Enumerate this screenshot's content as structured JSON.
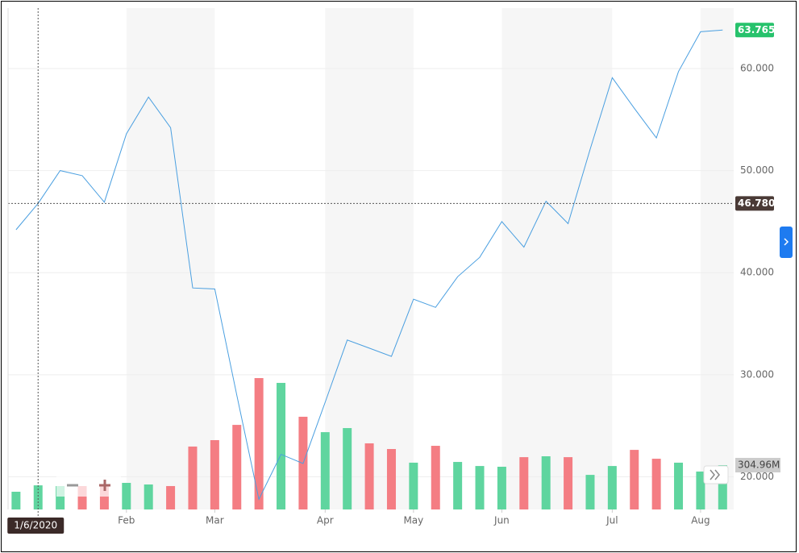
{
  "chart_data": {
    "type": "line",
    "values": [
      44.2,
      46.78,
      50.0,
      49.5,
      46.9,
      53.6,
      57.2,
      54.2,
      38.5,
      38.4,
      28.0,
      17.8,
      22.2,
      21.3,
      27.3,
      33.4,
      32.6,
      31.8,
      37.4,
      36.6,
      39.6,
      41.5,
      45.0,
      42.5,
      47.0,
      44.8,
      52.1,
      59.1,
      56.1,
      53.2,
      59.7,
      63.6,
      63.765
    ],
    "color": "#4a9fe0",
    "volume": [
      122,
      166,
      161,
      161,
      161,
      183,
      172,
      161,
      433,
      477,
      582,
      904,
      871,
      638,
      532,
      560,
      455,
      416,
      322,
      438,
      327,
      299,
      294,
      360,
      366,
      360,
      238,
      299,
      410,
      349,
      322,
      261,
      304.96
    ],
    "up_color": "#5fd59f",
    "down_color": "#f47d83",
    "xlim": [
      -0.36,
      32.5
    ],
    "xticks": [
      {
        "value": 5,
        "label": "Feb"
      },
      {
        "value": 9,
        "label": "Mar"
      },
      {
        "value": 14,
        "label": "Apr"
      },
      {
        "value": 18,
        "label": "May"
      },
      {
        "value": 22,
        "label": "Jun"
      },
      {
        "value": 27,
        "label": "Jul"
      },
      {
        "value": 31,
        "label": "Aug"
      }
    ],
    "ylim": [
      16.8,
      65.92
    ],
    "yticks": [
      {
        "value": 20,
        "label": "20.000"
      },
      {
        "value": 30,
        "label": "30.000"
      },
      {
        "value": 40,
        "label": "40.000"
      },
      {
        "value": 50,
        "label": "50.000"
      },
      {
        "value": 60,
        "label": "60.000"
      }
    ],
    "y2lim": [
      0,
      3450
    ],
    "y2ticks": [
      {
        "value": 304.96,
        "label": "304.96M"
      }
    ],
    "price_markers": [
      {
        "value": 63.765,
        "label": "63.765",
        "color": "#27c26c"
      },
      {
        "value": 46.78,
        "label": "46.780",
        "color": "#4a3a36"
      }
    ],
    "crosshair": {
      "x": 1,
      "label": "1/6/2020"
    },
    "grid": true
  }
}
